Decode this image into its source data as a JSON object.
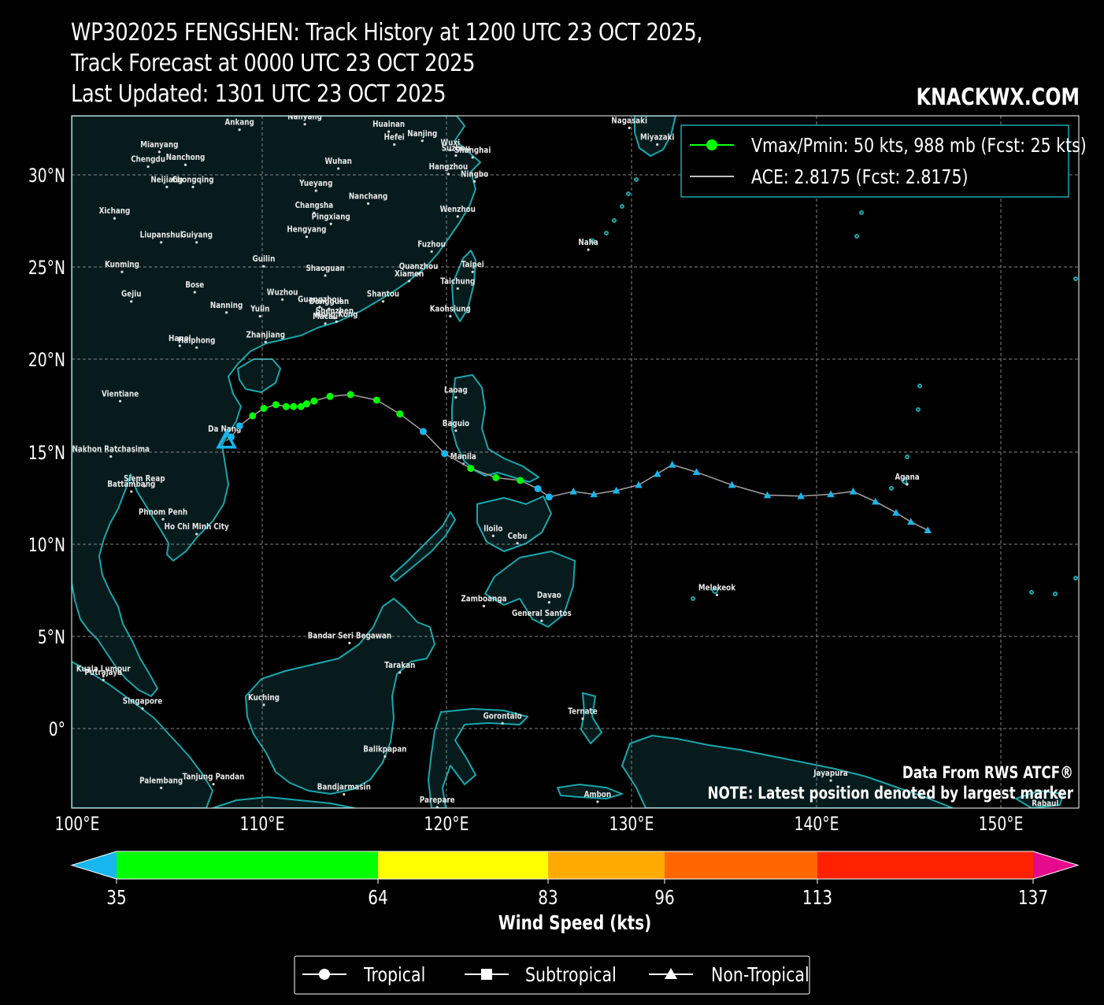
{
  "title": {
    "line1": "WP302025 FENGSHEN: Track History at 1200 UTC 23 OCT 2025,",
    "line2": "Track Forecast at 0000 UTC 23 OCT 2025",
    "line3": "Last Updated: 1301 UTC 23 OCT 2025"
  },
  "brand": "KNACKWX.COM",
  "legend": {
    "vmax_label": "Vmax/Pmin: 50 kts, 988 mb (Fcst: 25 kts)",
    "ace_label": "ACE: 2.8175 (Fcst: 2.8175)"
  },
  "notes": {
    "source": "Data From RWS ATCF®",
    "latest": "NOTE: Latest position denoted by largest marker"
  },
  "axes": {
    "lon_ticks": [
      "100°E",
      "110°E",
      "120°E",
      "130°E",
      "140°E",
      "150°E"
    ],
    "lat_ticks": [
      "30°N",
      "25°N",
      "20°N",
      "15°N",
      "10°N",
      "5°N",
      "0°"
    ],
    "lon_range": [
      100,
      154
    ],
    "lat_range": [
      -4.3,
      33.2
    ]
  },
  "colors": {
    "land": "#071b1d",
    "coast": "#17a7ad",
    "grid": "#9a9a9a",
    "track_line": "#9a9a9a",
    "ts": "#00ff00",
    "td": "#18b6ee"
  },
  "cities": [
    {
      "name": "Ankang",
      "lon": 109.0,
      "lat": 32.7
    },
    {
      "name": "Nanyang",
      "lon": 112.5,
      "lat": 33.0
    },
    {
      "name": "Huainan",
      "lon": 117.0,
      "lat": 32.6
    },
    {
      "name": "Hefei",
      "lon": 117.3,
      "lat": 31.9
    },
    {
      "name": "Nanjing",
      "lon": 118.8,
      "lat": 32.1
    },
    {
      "name": "Wuxi",
      "lon": 120.3,
      "lat": 31.6
    },
    {
      "name": "Suzhou",
      "lon": 120.6,
      "lat": 31.3
    },
    {
      "name": "Shanghai",
      "lon": 121.5,
      "lat": 31.2
    },
    {
      "name": "Hangzhou",
      "lon": 120.2,
      "lat": 30.3
    },
    {
      "name": "Ningbo",
      "lon": 121.6,
      "lat": 29.9
    },
    {
      "name": "Nagasaki",
      "lon": 129.9,
      "lat": 32.8
    },
    {
      "name": "Miyazaki",
      "lon": 131.4,
      "lat": 31.9
    },
    {
      "name": "Mianyang",
      "lon": 104.7,
      "lat": 31.5
    },
    {
      "name": "Chengdu",
      "lon": 104.1,
      "lat": 30.7
    },
    {
      "name": "Nanchong",
      "lon": 106.1,
      "lat": 30.8
    },
    {
      "name": "Neijiang",
      "lon": 105.1,
      "lat": 29.6
    },
    {
      "name": "Chongqing",
      "lon": 106.5,
      "lat": 29.6
    },
    {
      "name": "Wuhan",
      "lon": 114.3,
      "lat": 30.6
    },
    {
      "name": "Yueyang",
      "lon": 113.1,
      "lat": 29.4
    },
    {
      "name": "Nanchang",
      "lon": 115.9,
      "lat": 28.7
    },
    {
      "name": "Changsha",
      "lon": 113.0,
      "lat": 28.2
    },
    {
      "name": "Pingxiang",
      "lon": 113.9,
      "lat": 27.6
    },
    {
      "name": "Xichang",
      "lon": 102.3,
      "lat": 27.9
    },
    {
      "name": "Hengyang",
      "lon": 112.6,
      "lat": 26.9
    },
    {
      "name": "Wenzhou",
      "lon": 120.7,
      "lat": 28.0
    },
    {
      "name": "Liupanshui",
      "lon": 104.8,
      "lat": 26.6
    },
    {
      "name": "Guiyang",
      "lon": 106.7,
      "lat": 26.6
    },
    {
      "name": "Fuzhou",
      "lon": 119.3,
      "lat": 26.1
    },
    {
      "name": "Naha",
      "lon": 127.7,
      "lat": 26.2
    },
    {
      "name": "Kunming",
      "lon": 102.7,
      "lat": 25.0
    },
    {
      "name": "Guilin",
      "lon": 110.3,
      "lat": 25.3
    },
    {
      "name": "Shaoguan",
      "lon": 113.6,
      "lat": 24.8
    },
    {
      "name": "Quanzhou",
      "lon": 118.6,
      "lat": 24.9
    },
    {
      "name": "Taipei",
      "lon": 121.5,
      "lat": 25.0
    },
    {
      "name": "Xiamen",
      "lon": 118.1,
      "lat": 24.5
    },
    {
      "name": "Taichung",
      "lon": 120.7,
      "lat": 24.1
    },
    {
      "name": "Bose",
      "lon": 106.6,
      "lat": 23.9
    },
    {
      "name": "Wuzhou",
      "lon": 111.3,
      "lat": 23.5
    },
    {
      "name": "Dongguan",
      "lon": 113.8,
      "lat": 23.0
    },
    {
      "name": "Gejiu",
      "lon": 103.2,
      "lat": 23.4
    },
    {
      "name": "Guangzhou",
      "lon": 113.3,
      "lat": 23.1
    },
    {
      "name": "Shantou",
      "lon": 116.7,
      "lat": 23.4
    },
    {
      "name": "Nanning",
      "lon": 108.3,
      "lat": 22.8
    },
    {
      "name": "Yulin",
      "lon": 110.1,
      "lat": 22.6
    },
    {
      "name": "Shenzhen",
      "lon": 114.1,
      "lat": 22.5
    },
    {
      "name": "Kaohsiung",
      "lon": 120.3,
      "lat": 22.6
    },
    {
      "name": "Macau",
      "lon": 113.6,
      "lat": 22.2
    },
    {
      "name": "Hong Kong",
      "lon": 114.2,
      "lat": 22.3
    },
    {
      "name": "Zhanjiang",
      "lon": 110.4,
      "lat": 21.2
    },
    {
      "name": "Hanoi",
      "lon": 105.8,
      "lat": 21.0
    },
    {
      "name": "Haiphong",
      "lon": 106.7,
      "lat": 20.9
    },
    {
      "name": "Laoag",
      "lon": 120.6,
      "lat": 18.2
    },
    {
      "name": "Vientiane",
      "lon": 102.6,
      "lat": 18.0
    },
    {
      "name": "Baguio",
      "lon": 120.6,
      "lat": 16.4
    },
    {
      "name": "Da Nang",
      "lon": 108.2,
      "lat": 16.1
    },
    {
      "name": "Nakhon Ratchasima",
      "lon": 102.1,
      "lat": 15.0
    },
    {
      "name": "Manila",
      "lon": 121.0,
      "lat": 14.6
    },
    {
      "name": "Agana",
      "lon": 144.8,
      "lat": 13.5
    },
    {
      "name": "Siem Reap",
      "lon": 103.9,
      "lat": 13.4
    },
    {
      "name": "Battambang",
      "lon": 103.2,
      "lat": 13.1
    },
    {
      "name": "Phnom Penh",
      "lon": 104.9,
      "lat": 11.6
    },
    {
      "name": "Ho Chi Minh City",
      "lon": 106.7,
      "lat": 10.8
    },
    {
      "name": "Iloilo",
      "lon": 122.6,
      "lat": 10.7
    },
    {
      "name": "Cebu",
      "lon": 123.9,
      "lat": 10.3
    },
    {
      "name": "Melekeok",
      "lon": 134.6,
      "lat": 7.5
    },
    {
      "name": "Davao",
      "lon": 125.6,
      "lat": 7.1
    },
    {
      "name": "Zamboanga",
      "lon": 122.1,
      "lat": 6.9
    },
    {
      "name": "General Santos",
      "lon": 125.2,
      "lat": 6.1
    },
    {
      "name": "Bandar Seri Begawan",
      "lon": 114.9,
      "lat": 4.9
    },
    {
      "name": "Kuala Lumpur",
      "lon": 101.7,
      "lat": 3.1
    },
    {
      "name": "Tarakan",
      "lon": 117.6,
      "lat": 3.3
    },
    {
      "name": "Putrajaya",
      "lon": 101.7,
      "lat": 2.9
    },
    {
      "name": "Kuching",
      "lon": 110.3,
      "lat": 1.55
    },
    {
      "name": "Singapore",
      "lon": 103.8,
      "lat": 1.35
    },
    {
      "name": "Gorontalo",
      "lon": 123.1,
      "lat": 0.55
    },
    {
      "name": "Ternate",
      "lon": 127.4,
      "lat": 0.8
    },
    {
      "name": "Balikpapan",
      "lon": 116.8,
      "lat": -1.25
    },
    {
      "name": "Jayapura",
      "lon": 140.7,
      "lat": -2.55
    },
    {
      "name": "Tanjung Pandan",
      "lon": 107.6,
      "lat": -2.75
    },
    {
      "name": "Palembang",
      "lon": 104.8,
      "lat": -2.95
    },
    {
      "name": "Bandjarmasin",
      "lon": 114.6,
      "lat": -3.3
    },
    {
      "name": "Ambon",
      "lon": 128.2,
      "lat": -3.7
    },
    {
      "name": "Parepare",
      "lon": 119.6,
      "lat": -4.0
    },
    {
      "name": "Rabaul",
      "lon": 152.2,
      "lat": -4.2
    }
  ],
  "track": [
    {
      "lon": 145.9,
      "lat": 10.75,
      "kind": "non-tropical",
      "vmax": 30
    },
    {
      "lon": 145.0,
      "lat": 11.2,
      "kind": "non-tropical",
      "vmax": 30
    },
    {
      "lon": 144.2,
      "lat": 11.7,
      "kind": "non-tropical",
      "vmax": 30
    },
    {
      "lon": 143.1,
      "lat": 12.3,
      "kind": "non-tropical",
      "vmax": 30
    },
    {
      "lon": 141.9,
      "lat": 12.85,
      "kind": "non-tropical",
      "vmax": 30
    },
    {
      "lon": 140.7,
      "lat": 12.7,
      "kind": "non-tropical",
      "vmax": 30
    },
    {
      "lon": 139.1,
      "lat": 12.6,
      "kind": "non-tropical",
      "vmax": 30
    },
    {
      "lon": 137.3,
      "lat": 12.65,
      "kind": "non-tropical",
      "vmax": 30
    },
    {
      "lon": 135.4,
      "lat": 13.2,
      "kind": "non-tropical",
      "vmax": 30
    },
    {
      "lon": 133.5,
      "lat": 13.9,
      "kind": "non-tropical",
      "vmax": 30
    },
    {
      "lon": 132.2,
      "lat": 14.3,
      "kind": "non-tropical",
      "vmax": 30
    },
    {
      "lon": 131.4,
      "lat": 13.8,
      "kind": "non-tropical",
      "vmax": 30
    },
    {
      "lon": 130.4,
      "lat": 13.2,
      "kind": "non-tropical",
      "vmax": 30
    },
    {
      "lon": 129.2,
      "lat": 12.9,
      "kind": "non-tropical",
      "vmax": 30
    },
    {
      "lon": 128.0,
      "lat": 12.7,
      "kind": "non-tropical",
      "vmax": 30
    },
    {
      "lon": 126.9,
      "lat": 12.85,
      "kind": "non-tropical",
      "vmax": 30
    },
    {
      "lon": 125.6,
      "lat": 12.55,
      "kind": "tropical",
      "vmax": 30
    },
    {
      "lon": 125.0,
      "lat": 13.0,
      "kind": "tropical",
      "vmax": 30
    },
    {
      "lon": 124.05,
      "lat": 13.45,
      "kind": "tropical",
      "vmax": 35
    },
    {
      "lon": 122.75,
      "lat": 13.6,
      "kind": "tropical",
      "vmax": 35
    },
    {
      "lon": 121.4,
      "lat": 14.1,
      "kind": "tropical",
      "vmax": 35
    },
    {
      "lon": 120.0,
      "lat": 14.9,
      "kind": "tropical",
      "vmax": 30
    },
    {
      "lon": 118.85,
      "lat": 16.1,
      "kind": "tropical",
      "vmax": 30
    },
    {
      "lon": 117.6,
      "lat": 17.05,
      "kind": "tropical",
      "vmax": 35
    },
    {
      "lon": 116.35,
      "lat": 17.8,
      "kind": "tropical",
      "vmax": 40
    },
    {
      "lon": 114.95,
      "lat": 18.1,
      "kind": "tropical",
      "vmax": 45
    },
    {
      "lon": 113.85,
      "lat": 18.0,
      "kind": "tropical",
      "vmax": 50
    },
    {
      "lon": 113.0,
      "lat": 17.75,
      "kind": "tropical",
      "vmax": 50
    },
    {
      "lon": 112.6,
      "lat": 17.6,
      "kind": "tropical",
      "vmax": 50
    },
    {
      "lon": 112.3,
      "lat": 17.45,
      "kind": "tropical",
      "vmax": 50
    },
    {
      "lon": 111.9,
      "lat": 17.45,
      "kind": "tropical",
      "vmax": 50
    },
    {
      "lon": 111.5,
      "lat": 17.45,
      "kind": "tropical",
      "vmax": 50
    },
    {
      "lon": 110.95,
      "lat": 17.55,
      "kind": "tropical",
      "vmax": 45
    },
    {
      "lon": 110.3,
      "lat": 17.35,
      "kind": "tropical",
      "vmax": 40
    },
    {
      "lon": 109.7,
      "lat": 16.95,
      "kind": "tropical",
      "vmax": 35
    },
    {
      "lon": 109.0,
      "lat": 16.4,
      "kind": "tropical",
      "vmax": 30
    },
    {
      "lon": 108.55,
      "lat": 15.8,
      "kind": "tropical",
      "vmax": 30
    },
    {
      "lon": 108.3,
      "lat": 15.6,
      "kind": "non-tropical",
      "vmax": 25
    }
  ],
  "colorbar": {
    "ticks": [
      "35",
      "64",
      "83",
      "96",
      "113",
      "137"
    ],
    "label": "Wind Speed (kts)",
    "colors": [
      "#00ff00",
      "#ffff00",
      "#ffaa00",
      "#ff6600",
      "#ff2200"
    ],
    "under_color": "#18b6ee",
    "over_color": "#e60a8c"
  },
  "bottom_legend": {
    "tropical": "Tropical",
    "subtropical": "Subtropical",
    "non_tropical": "Non-Tropical"
  }
}
